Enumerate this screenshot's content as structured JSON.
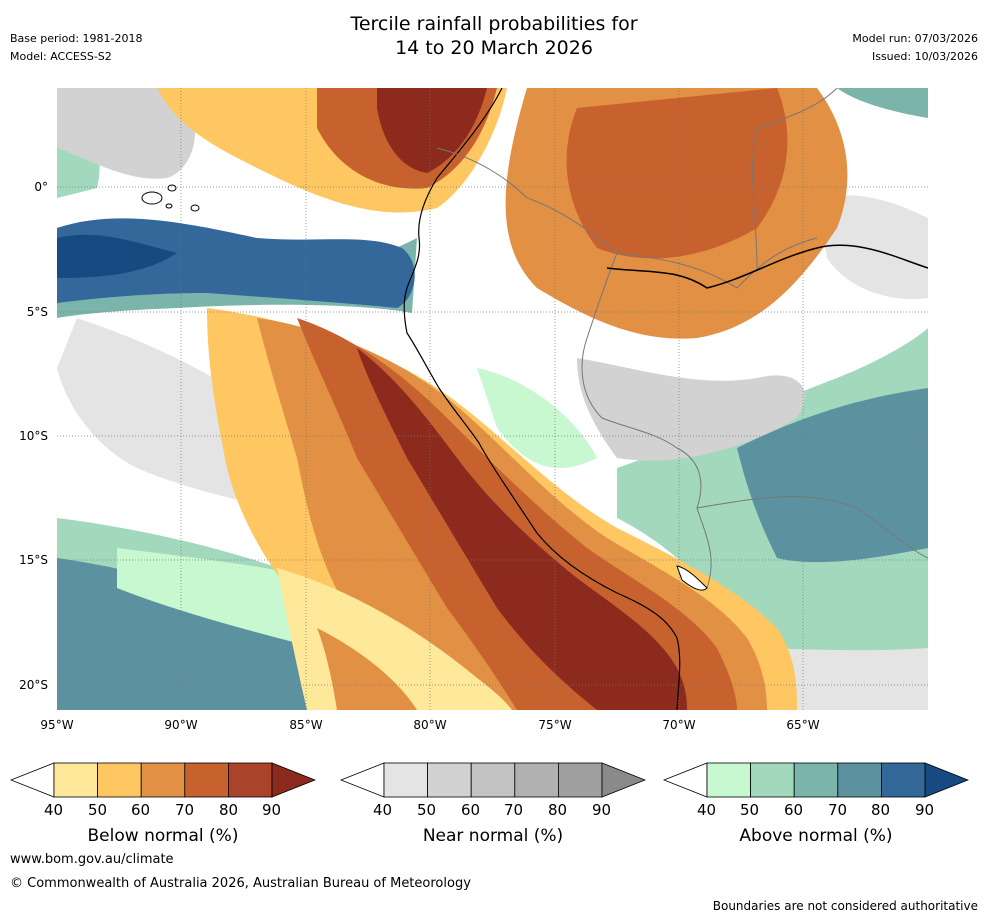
{
  "header": {
    "title_line1": "Tercile rainfall probabilities for",
    "title_line2": "14 to 20 March 2026",
    "base_period": "Base period: 1981-2018",
    "model": "Model: ACCESS-S2",
    "model_run": "Model run: 07/03/2026",
    "issued": "Issued: 10/03/2026"
  },
  "map": {
    "lat_labels": [
      "0°",
      "5°S",
      "10°S",
      "15°S",
      "20°S"
    ],
    "lon_labels": [
      "95°W",
      "90°W",
      "85°W",
      "80°W",
      "75°W",
      "70°W",
      "65°W"
    ]
  },
  "colorbars": [
    {
      "caption": "Below normal (%)",
      "ticks": [
        "40",
        "50",
        "60",
        "70",
        "80",
        "90"
      ],
      "colors": [
        "#ffffff",
        "#fee99b",
        "#fec761",
        "#e29044",
        "#c7622f",
        "#a9432a",
        "#8c2a1e"
      ]
    },
    {
      "caption": "Near normal (%)",
      "ticks": [
        "40",
        "50",
        "60",
        "70",
        "80",
        "90"
      ],
      "colors": [
        "#ffffff",
        "#e4e4e4",
        "#d2d2d2",
        "#c2c2c2",
        "#b1b1b1",
        "#9f9f9f",
        "#8a8a8a"
      ]
    },
    {
      "caption": "Above normal (%)",
      "ticks": [
        "40",
        "50",
        "60",
        "70",
        "80",
        "90"
      ],
      "colors": [
        "#ffffff",
        "#c8f8d0",
        "#a2d8bc",
        "#7ab4aa",
        "#5c92a0",
        "#34689a",
        "#174a80"
      ]
    }
  ],
  "footer": {
    "website": "www.bom.gov.au/climate",
    "copyright": "© Commonwealth of Australia 2026, Australian Bureau of Meteorology",
    "disclaimer": "Boundaries are not considered authoritative"
  }
}
